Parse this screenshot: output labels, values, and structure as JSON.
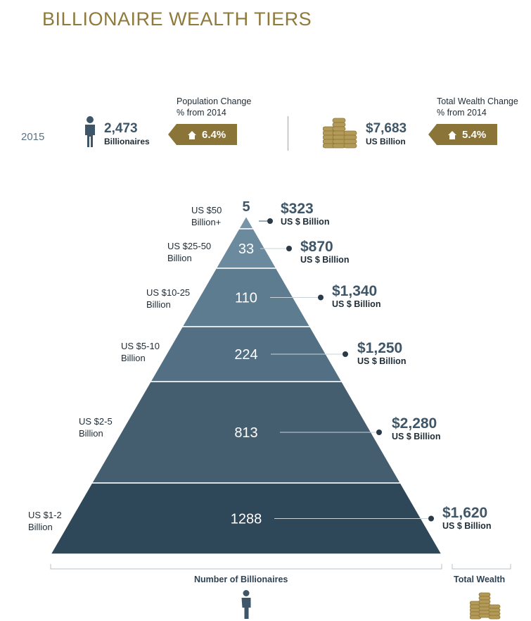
{
  "title": "BILLIONAIRE WEALTH TIERS",
  "year": "2015",
  "population": {
    "value": "2,473",
    "unit": "Billionaires",
    "change_label_1": "Population Change",
    "change_label_2": "% from 2014",
    "change": "6.4%"
  },
  "wealth": {
    "value": "$7,683",
    "unit": "US Billion",
    "change_label_1": "Total Wealth Change",
    "change_label_2": "% from 2014",
    "change": "5.4%"
  },
  "axis": {
    "count_label": "Number of Billionaires",
    "wealth_label": "Total Wealth"
  },
  "colors": {
    "title": "#8f7a3c",
    "badge": "#8b7438",
    "tiers": [
      "#7795a8",
      "#6c8a9e",
      "#5e7c90",
      "#526f83",
      "#445e70",
      "#2e4859"
    ]
  },
  "chart_data": {
    "type": "bar",
    "title": "BILLIONAIRE WEALTH TIERS",
    "categories": [
      "US $50 Billion+",
      "US $25-50 Billion",
      "US $10-25 Billion",
      "US $5-10 Billion",
      "US $2-5 Billion",
      "US $1-2 Billion"
    ],
    "tier_label_lines": [
      [
        "US $50",
        "Billion+"
      ],
      [
        "US $25-50",
        "Billion"
      ],
      [
        "US $10-25",
        "Billion"
      ],
      [
        "US $5-10",
        "Billion"
      ],
      [
        "US $2-5",
        "Billion"
      ],
      [
        "US $1-2",
        "Billion"
      ]
    ],
    "series": [
      {
        "name": "Number of Billionaires",
        "values": [
          5,
          33,
          110,
          224,
          813,
          1288
        ]
      },
      {
        "name": "Total Wealth",
        "values": [
          323,
          870,
          1340,
          1250,
          2280,
          1620
        ]
      }
    ],
    "count_labels": [
      "5",
      "33",
      "110",
      "224",
      "813",
      "1288"
    ],
    "wealth_labels": [
      "$323",
      "$870",
      "$1,340",
      "$1,250",
      "$2,280",
      "$1,620"
    ],
    "wealth_unit": "US $ Billion"
  }
}
